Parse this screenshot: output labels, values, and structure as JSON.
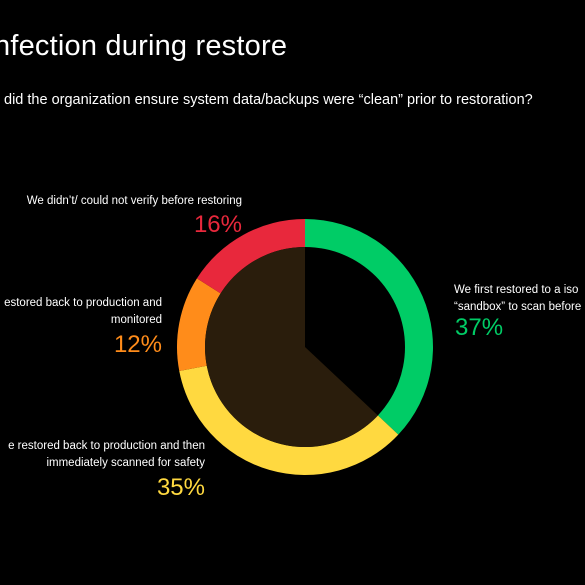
{
  "header": {
    "title": "nfection during restore",
    "subtitle": "did the organization ensure system data/backups were “clean” prior to restoration?"
  },
  "chart_data": {
    "type": "pie",
    "variant": "donut",
    "title": "nfection during restore",
    "slices": [
      {
        "label_lines": [
          "We first restored to a iso",
          "“sandbox” to scan before"
        ],
        "value": 37,
        "value_label": "37%",
        "color": "#00cc66"
      },
      {
        "label_lines": [
          "e restored back to production and then",
          "immediately scanned for safety"
        ],
        "value": 35,
        "value_label": "35%",
        "color": "#ffd940"
      },
      {
        "label_lines": [
          "estored back to production and",
          "monitored"
        ],
        "value": 12,
        "value_label": "12%",
        "color": "#ff8c1a"
      },
      {
        "label_lines": [
          "We didn’t/ could not verify before restoring"
        ],
        "value": 16,
        "value_label": "16%",
        "color": "#e8283c"
      }
    ],
    "inner_fill": "#2a1d0c",
    "legend": "none"
  }
}
